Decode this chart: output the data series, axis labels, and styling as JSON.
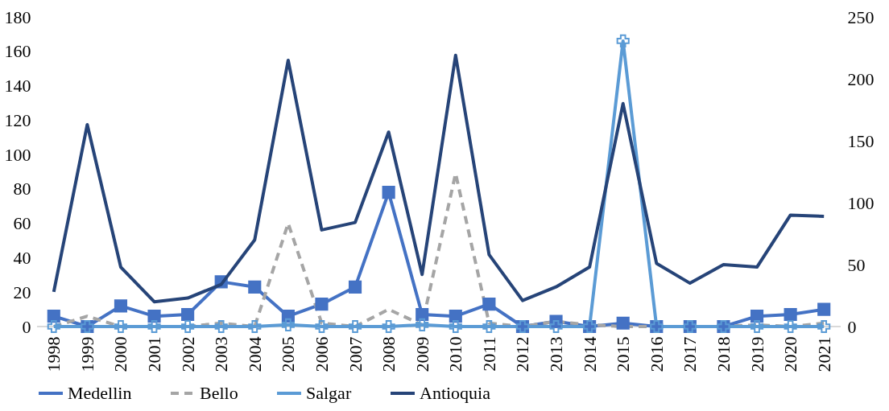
{
  "chart_data": {
    "type": "line",
    "categories": [
      "1998",
      "1999",
      "2000",
      "2001",
      "2002",
      "2003",
      "2004",
      "2005",
      "2006",
      "2007",
      "2008",
      "2009",
      "2010",
      "2011",
      "2012",
      "2013",
      "2014",
      "2015",
      "2016",
      "2017",
      "2018",
      "2019",
      "2020",
      "2021"
    ],
    "series": [
      {
        "name": "Medellin",
        "color": "#4472c4",
        "marker": "square",
        "line_style": "solid",
        "values": [
          6,
          0,
          12,
          6,
          7,
          26,
          23,
          6,
          13,
          23,
          78,
          7,
          6,
          13,
          0,
          3,
          0,
          2,
          0,
          0,
          0,
          6,
          7,
          10
        ]
      },
      {
        "name": "Bello",
        "color": "#a5a5a5",
        "marker": "none",
        "line_style": "dashed",
        "values": [
          0,
          6,
          0,
          0,
          0,
          2,
          0,
          60,
          2,
          0,
          10,
          1,
          89,
          2,
          0,
          3,
          1,
          0,
          0,
          0,
          0,
          1,
          0,
          2
        ]
      },
      {
        "name": "Salgar",
        "color": "#5b9bd5",
        "marker": "cross",
        "line_style": "solid",
        "values": [
          0,
          0,
          0,
          0,
          0,
          0,
          0,
          1,
          0,
          0,
          0,
          1,
          0,
          0,
          0,
          0,
          0,
          166,
          0,
          0,
          0,
          0,
          0,
          0
        ]
      },
      {
        "name": "Antioquia",
        "color": "#264478",
        "marker": "none",
        "line_style": "solid",
        "axis": "y2",
        "values": [
          28,
          163,
          48,
          20,
          23,
          34,
          70,
          215,
          78,
          84,
          157,
          42,
          219,
          58,
          21,
          32,
          48,
          180,
          51,
          35,
          50,
          48,
          90,
          89
        ]
      }
    ],
    "ylim": [
      0,
      180
    ],
    "yticks": [
      0,
      20,
      40,
      60,
      80,
      100,
      120,
      140,
      160,
      180
    ],
    "y2lim": [
      0,
      250
    ],
    "y2ticks": [
      0,
      50,
      100,
      150,
      200,
      250
    ],
    "grid": false,
    "legend": "bottom"
  }
}
